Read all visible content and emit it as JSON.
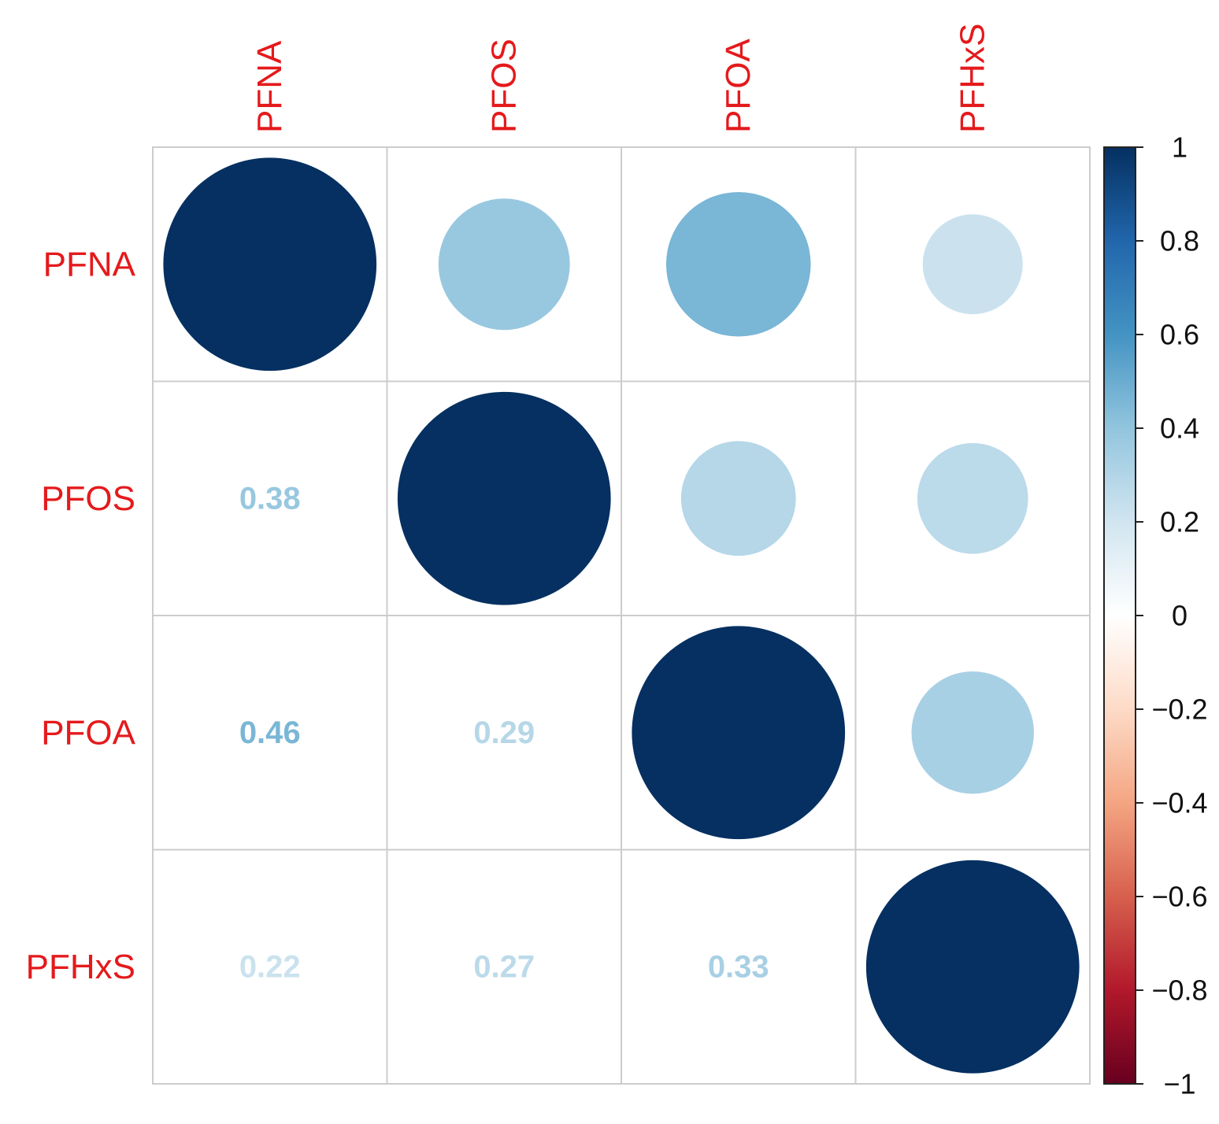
{
  "chart_data": {
    "type": "heatmap",
    "title": "",
    "variables": [
      "PFNA",
      "PFOS",
      "PFOA",
      "PFHxS"
    ],
    "matrix": [
      [
        1,
        0.38,
        0.46,
        0.22
      ],
      [
        0.38,
        1,
        0.29,
        0.27
      ],
      [
        0.46,
        0.29,
        1,
        0.33
      ],
      [
        0.22,
        0.27,
        0.33,
        1
      ]
    ],
    "upper_triangle_glyph": "circle",
    "lower_triangle_glyph": "number",
    "colorbar": {
      "range": [
        -1,
        1
      ],
      "tick_labels": [
        "1",
        "0.8",
        "0.6",
        "0.4",
        "0.2",
        "0",
        "−0.2",
        "−0.4",
        "−0.6",
        "−0.8",
        "−1"
      ],
      "tick_values": [
        1,
        0.8,
        0.6,
        0.4,
        0.2,
        0,
        -0.2,
        -0.4,
        -0.6,
        -0.8,
        -1
      ],
      "placement": "right"
    },
    "label_color": "#e41a1c",
    "grid_color": "#cccccc",
    "palette": [
      "#67001F",
      "#B2182B",
      "#D6604D",
      "#F4A582",
      "#FDDBC7",
      "#FFFFFF",
      "#D1E5F0",
      "#92C5DE",
      "#4393C3",
      "#2166AC",
      "#053061"
    ]
  }
}
